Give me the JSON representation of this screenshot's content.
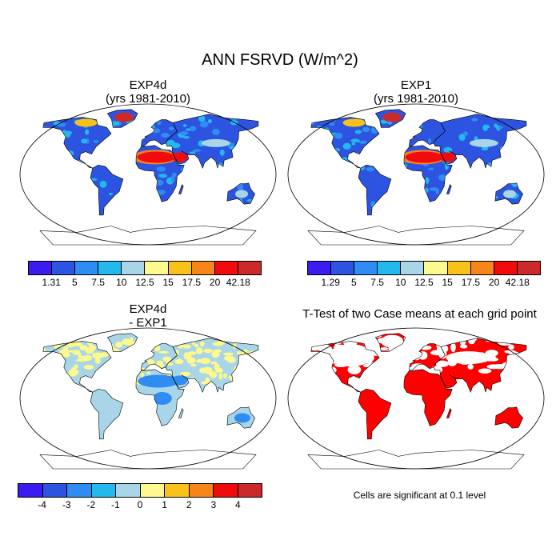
{
  "figure": {
    "title": "ANN FSRVD (W/m^2)",
    "panels": {
      "exp4d": {
        "line1": "EXP4d",
        "line2": "(yrs 1981-2010)"
      },
      "exp1": {
        "line1": "EXP1",
        "line2": "(yrs 1981-2010)"
      },
      "diff": {
        "line1": "EXP4d",
        "line2": "- EXP1"
      },
      "ttest": {
        "line1": "T-Test of two Case means at each grid point"
      }
    },
    "note": "Cells are significant at 0.1 level"
  },
  "colorbars": {
    "exp4d": {
      "colors": [
        "#3a1cf0",
        "#2c54e0",
        "#2f8cf2",
        "#24b9ee",
        "#a8d6e8",
        "#fdf98e",
        "#f9c21b",
        "#f7861a",
        "#f00c0c",
        "#cc2a2a"
      ],
      "labels": [
        "1.31",
        "5",
        "7.5",
        "10",
        "12.5",
        "15",
        "17.5",
        "20",
        "42.18"
      ]
    },
    "exp1": {
      "colors": [
        "#3a1cf0",
        "#2c54e0",
        "#2f8cf2",
        "#24b9ee",
        "#a8d6e8",
        "#fdf98e",
        "#f9c21b",
        "#f7861a",
        "#f00c0c",
        "#cc2a2a"
      ],
      "labels": [
        "1.29",
        "5",
        "7.5",
        "10",
        "12.5",
        "15",
        "17.5",
        "20",
        "42.18"
      ]
    },
    "diff": {
      "colors": [
        "#3a1cf0",
        "#2c54e0",
        "#2f8cf2",
        "#24b9ee",
        "#a8d6e8",
        "#fdf98e",
        "#f9c21b",
        "#f7861a",
        "#f00c0c",
        "#cc2a2a"
      ],
      "labels": [
        "-4",
        "-3",
        "-2",
        "-1",
        "0",
        "1",
        "2",
        "3",
        "4"
      ]
    }
  },
  "map_colors": {
    "ocean": "#ffffff",
    "coast": "#000000",
    "significant": "#ff0000",
    "low": "#2c54e0",
    "mid": "#2f8cf2",
    "high": "#f00c0c",
    "diff_pos": "#fdf98e",
    "diff_neutral": "#a8d6e8",
    "diff_neg": "#2f8cf2"
  }
}
